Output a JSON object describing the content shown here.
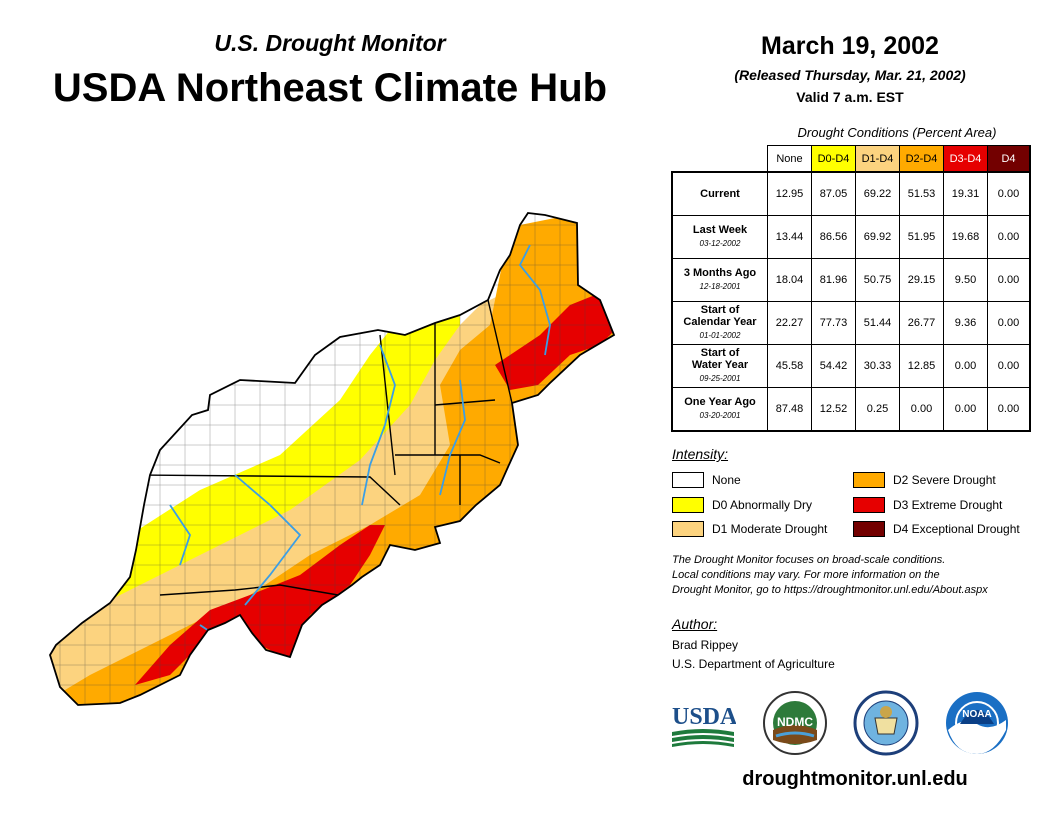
{
  "header": {
    "subtitle": "U.S. Drought Monitor",
    "title": "USDA Northeast Climate Hub",
    "date": "March 19, 2002",
    "released": "(Released Thursday, Mar. 21, 2002)",
    "valid": "Valid 7 a.m. EST"
  },
  "table": {
    "caption": "Drought Conditions (Percent Area)",
    "columns": [
      "None",
      "D0-D4",
      "D1-D4",
      "D2-D4",
      "D3-D4",
      "D4"
    ],
    "column_colors": [
      "#ffffff",
      "#ffff00",
      "#fcd37f",
      "#ffaa00",
      "#e60000",
      "#730000"
    ],
    "column_text_colors": [
      "#000000",
      "#000000",
      "#000000",
      "#000000",
      "#ffffff",
      "#ffffff"
    ],
    "rows": [
      {
        "label_lines": [
          "Current"
        ],
        "date": "",
        "values": [
          "12.95",
          "87.05",
          "69.22",
          "51.53",
          "19.31",
          "0.00"
        ]
      },
      {
        "label_lines": [
          "Last Week"
        ],
        "date": "03-12-2002",
        "values": [
          "13.44",
          "86.56",
          "69.92",
          "51.95",
          "19.68",
          "0.00"
        ]
      },
      {
        "label_lines": [
          "3 Months Ago"
        ],
        "date": "12-18-2001",
        "values": [
          "18.04",
          "81.96",
          "50.75",
          "29.15",
          "9.50",
          "0.00"
        ]
      },
      {
        "label_lines": [
          "Start of",
          "Calendar Year"
        ],
        "date": "01-01-2002",
        "values": [
          "22.27",
          "77.73",
          "51.44",
          "26.77",
          "9.36",
          "0.00"
        ]
      },
      {
        "label_lines": [
          "Start of",
          "Water Year"
        ],
        "date": "09-25-2001",
        "values": [
          "45.58",
          "54.42",
          "30.33",
          "12.85",
          "0.00",
          "0.00"
        ]
      },
      {
        "label_lines": [
          "One Year Ago"
        ],
        "date": "03-20-2001",
        "values": [
          "87.48",
          "12.52",
          "0.25",
          "0.00",
          "0.00",
          "0.00"
        ]
      }
    ]
  },
  "legend": {
    "title": "Intensity:",
    "items": [
      {
        "label": "None",
        "color": "#ffffff"
      },
      {
        "label": "D0 Abnormally Dry",
        "color": "#ffff00"
      },
      {
        "label": "D1 Moderate Drought",
        "color": "#fcd37f"
      },
      {
        "label": "D2 Severe Drought",
        "color": "#ffaa00"
      },
      {
        "label": "D3 Extreme Drought",
        "color": "#e60000"
      },
      {
        "label": "D4 Exceptional Drought",
        "color": "#730000"
      }
    ]
  },
  "note": {
    "lines": [
      "The Drought Monitor focuses on broad-scale conditions.",
      "Local conditions may vary. For more information on the",
      "Drought Monitor, go to https://droughtmonitor.unl.edu/About.aspx"
    ]
  },
  "author": {
    "title": "Author:",
    "name": "Brad Rippey",
    "org": "U.S. Department of Agriculture"
  },
  "logos": {
    "usda": "USDA",
    "ndmc": "NDMC",
    "noaa": "NOAA"
  },
  "website": "droughtmonitor.unl.edu"
}
